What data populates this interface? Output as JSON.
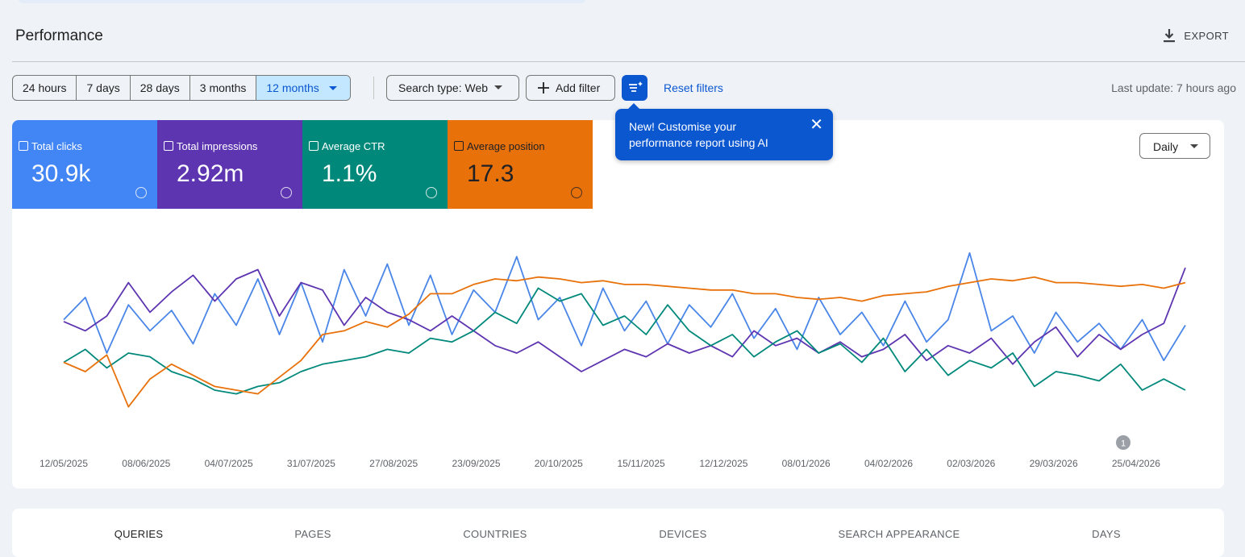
{
  "header": {
    "title": "Performance",
    "export": "EXPORT"
  },
  "filters": {
    "ranges": [
      "24 hours",
      "7 days",
      "28 days",
      "3 months",
      "12 months"
    ],
    "search_type": "Search type: Web",
    "add_filter": "Add filter",
    "reset": "Reset filters",
    "last_update": "Last update: 7 hours ago"
  },
  "tooltip": {
    "text": "New! Customise your performance report using AI"
  },
  "metrics": [
    {
      "label": "Total clicks",
      "value": "30.9k"
    },
    {
      "label": "Total impressions",
      "value": "2.92m"
    },
    {
      "label": "Average CTR",
      "value": "1.1%"
    },
    {
      "label": "Average position",
      "value": "17.3"
    }
  ],
  "granularity": "Daily",
  "chart_data": {
    "type": "line",
    "xticks": [
      "12/05/2025",
      "08/06/2025",
      "04/07/2025",
      "31/07/2025",
      "27/08/2025",
      "23/09/2025",
      "20/10/2025",
      "15/11/2025",
      "12/12/2025",
      "08/01/2026",
      "04/02/2026",
      "02/03/2026",
      "29/03/2026",
      "25/04/2026"
    ],
    "ylim": [
      0,
      100
    ],
    "annotation": "1",
    "series": [
      {
        "name": "Total clicks",
        "color": "#4a86e8",
        "values": [
          58,
          70,
          40,
          66,
          52,
          63,
          45,
          72,
          55,
          80,
          50,
          78,
          46,
          85,
          60,
          88,
          55,
          82,
          50,
          74,
          62,
          92,
          58,
          70,
          44,
          75,
          52,
          68,
          45,
          66,
          54,
          72,
          48,
          64,
          42,
          70,
          50,
          62,
          44,
          68,
          46,
          58,
          94,
          52,
          60,
          40,
          62,
          46,
          56,
          42,
          58,
          36,
          55
        ]
      },
      {
        "name": "Total impressions",
        "color": "#5e35b1",
        "values": [
          57,
          52,
          60,
          78,
          62,
          73,
          82,
          68,
          80,
          85,
          60,
          78,
          74,
          55,
          70,
          62,
          58,
          52,
          60,
          52,
          44,
          40,
          46,
          38,
          30,
          36,
          42,
          38,
          45,
          40,
          44,
          38,
          52,
          44,
          48,
          40,
          46,
          38,
          42,
          50,
          36,
          44,
          40,
          48,
          34,
          46,
          54,
          38,
          50,
          42,
          50,
          56,
          86
        ]
      },
      {
        "name": "Average CTR",
        "color": "#00897b",
        "values": [
          35,
          42,
          32,
          40,
          38,
          30,
          26,
          20,
          18,
          22,
          24,
          30,
          34,
          36,
          38,
          42,
          40,
          48,
          46,
          52,
          62,
          56,
          75,
          68,
          72,
          55,
          60,
          50,
          66,
          52,
          44,
          50,
          38,
          46,
          52,
          40,
          45,
          35,
          48,
          30,
          42,
          28,
          36,
          32,
          40,
          22,
          30,
          28,
          25,
          34,
          20,
          26,
          20
        ]
      },
      {
        "name": "Average position",
        "color": "#e8710a",
        "values": [
          35,
          30,
          39,
          11,
          26,
          34,
          28,
          22,
          20,
          18,
          27,
          36,
          50,
          52,
          57,
          54,
          61,
          72,
          72,
          77,
          80,
          79,
          81,
          80,
          78,
          79,
          77,
          77,
          76,
          75,
          74,
          74,
          72,
          72,
          70,
          69,
          70,
          68,
          71,
          72,
          73,
          76,
          78,
          80,
          79,
          81,
          78,
          78,
          77,
          76,
          77,
          75,
          78
        ]
      }
    ]
  },
  "tabs": [
    "QUERIES",
    "PAGES",
    "COUNTRIES",
    "DEVICES",
    "SEARCH APPEARANCE",
    "DAYS"
  ]
}
